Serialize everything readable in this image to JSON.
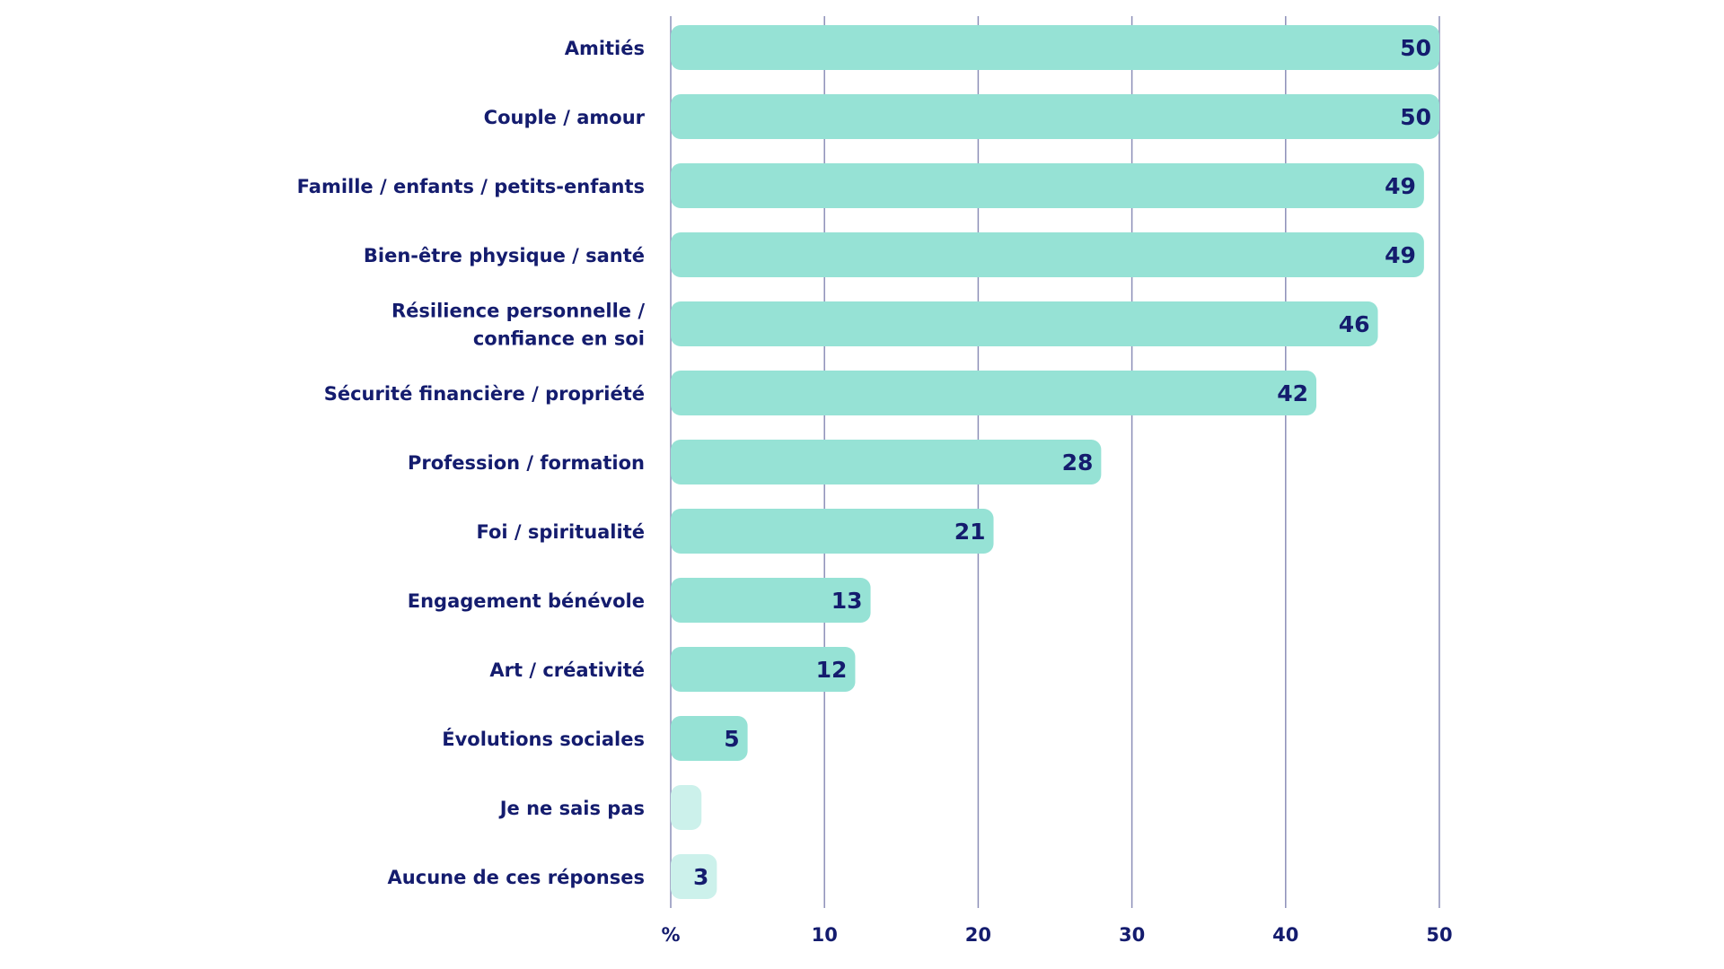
{
  "chart_data": {
    "type": "bar",
    "orientation": "horizontal",
    "categories": [
      "Amitiés",
      "Couple / amour",
      "Famille / enfants / petits-enfants",
      "Bien-être physique / santé",
      "Résilience personnelle / confiance en soi",
      "Sécurité financière / propriété",
      "Profession / formation",
      "Foi / spiritualité",
      "Engagement bénévole",
      "Art / créativité",
      "Évolutions sociales",
      "Je ne sais pas",
      "Aucune de ces réponses"
    ],
    "category_lines": [
      [
        "Amitiés"
      ],
      [
        "Couple / amour"
      ],
      [
        "Famille / enfants / petits-enfants"
      ],
      [
        "Bien-être physique / santé"
      ],
      [
        "Résilience personnelle /",
        "confiance en soi"
      ],
      [
        "Sécurité financière / propriété"
      ],
      [
        "Profession / formation"
      ],
      [
        "Foi / spiritualité"
      ],
      [
        "Engagement bénévole"
      ],
      [
        "Art / créativité"
      ],
      [
        "Évolutions sociales"
      ],
      [
        "Je ne sais pas"
      ],
      [
        "Aucune de ces réponses"
      ]
    ],
    "values": [
      50,
      50,
      49,
      49,
      46,
      42,
      28,
      21,
      13,
      12,
      5,
      2,
      3
    ],
    "value_labels": [
      "50",
      "50",
      "49",
      "49",
      "46",
      "42",
      "28",
      "21",
      "13",
      "12",
      "5",
      "",
      "3"
    ],
    "muted_categories": [
      "Je ne sais pas",
      "Aucune de ces réponses"
    ],
    "xlim": [
      0,
      50
    ],
    "x_ticks": [
      "%",
      "10",
      "20",
      "30",
      "40",
      "50"
    ],
    "x_tick_values": [
      0,
      10,
      20,
      30,
      40,
      50
    ],
    "grid": true,
    "legend": "none",
    "colors": {
      "bar": "#96e2d5",
      "bar_muted": "#ccf1eb",
      "text": "#141c6e",
      "grid": "#8c8fb8"
    }
  }
}
